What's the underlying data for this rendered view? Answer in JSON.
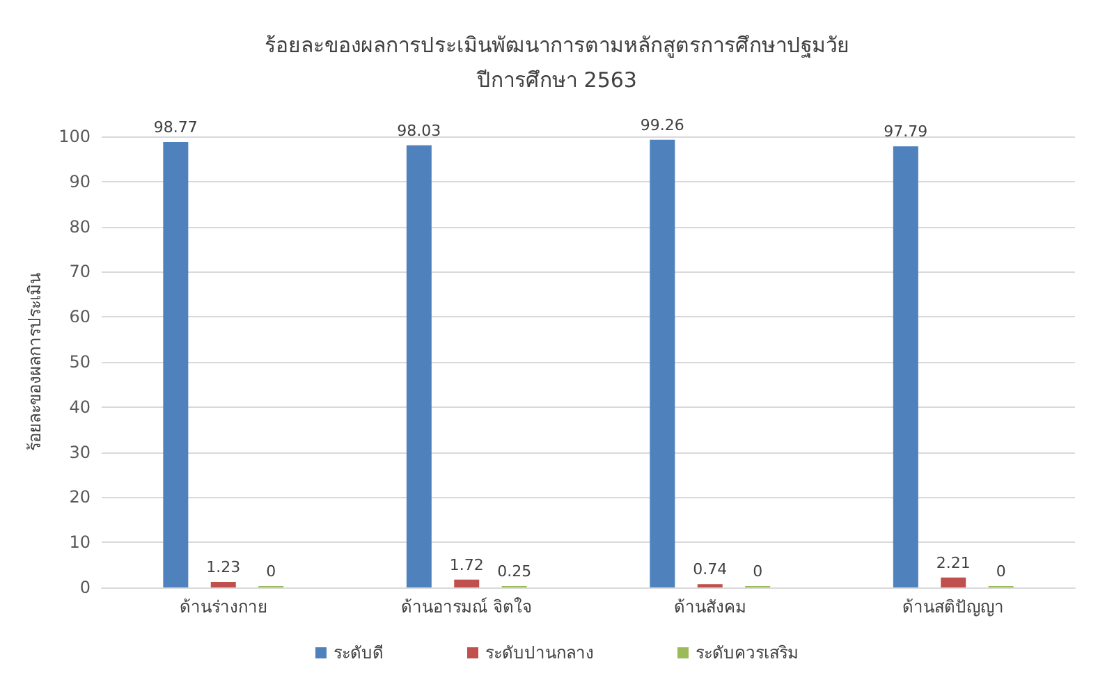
{
  "chart_data": {
    "type": "bar",
    "title": "ร้อยละของผลการประเมินพัฒนาการตามหลักสูตรการศึกษาปฐมวัย",
    "subtitle": "ปีการศึกษา 2563",
    "ylabel": "ร้อยละของผลการประเมิน",
    "categories": [
      "ด้านร่างกาย",
      "ด้านอารมณ์ จิตใจ",
      "ด้านสังคม",
      "ด้านสติปัญญา"
    ],
    "series": [
      {
        "name": "ระดับดี",
        "color": "#4f81bd",
        "values": [
          98.77,
          98.03,
          99.26,
          97.79
        ]
      },
      {
        "name": "ระดับปานกลาง",
        "color": "#c0504d",
        "values": [
          1.23,
          1.72,
          0.74,
          2.21
        ]
      },
      {
        "name": "ระดับควรเสริม",
        "color": "#9bbb59",
        "values": [
          0,
          0.25,
          0,
          0
        ]
      }
    ],
    "ylim": [
      0,
      100
    ],
    "yticks": [
      0,
      10,
      20,
      30,
      40,
      50,
      60,
      70,
      80,
      90,
      100
    ],
    "grid": "y",
    "legend": "bottom",
    "data_labels": true
  }
}
